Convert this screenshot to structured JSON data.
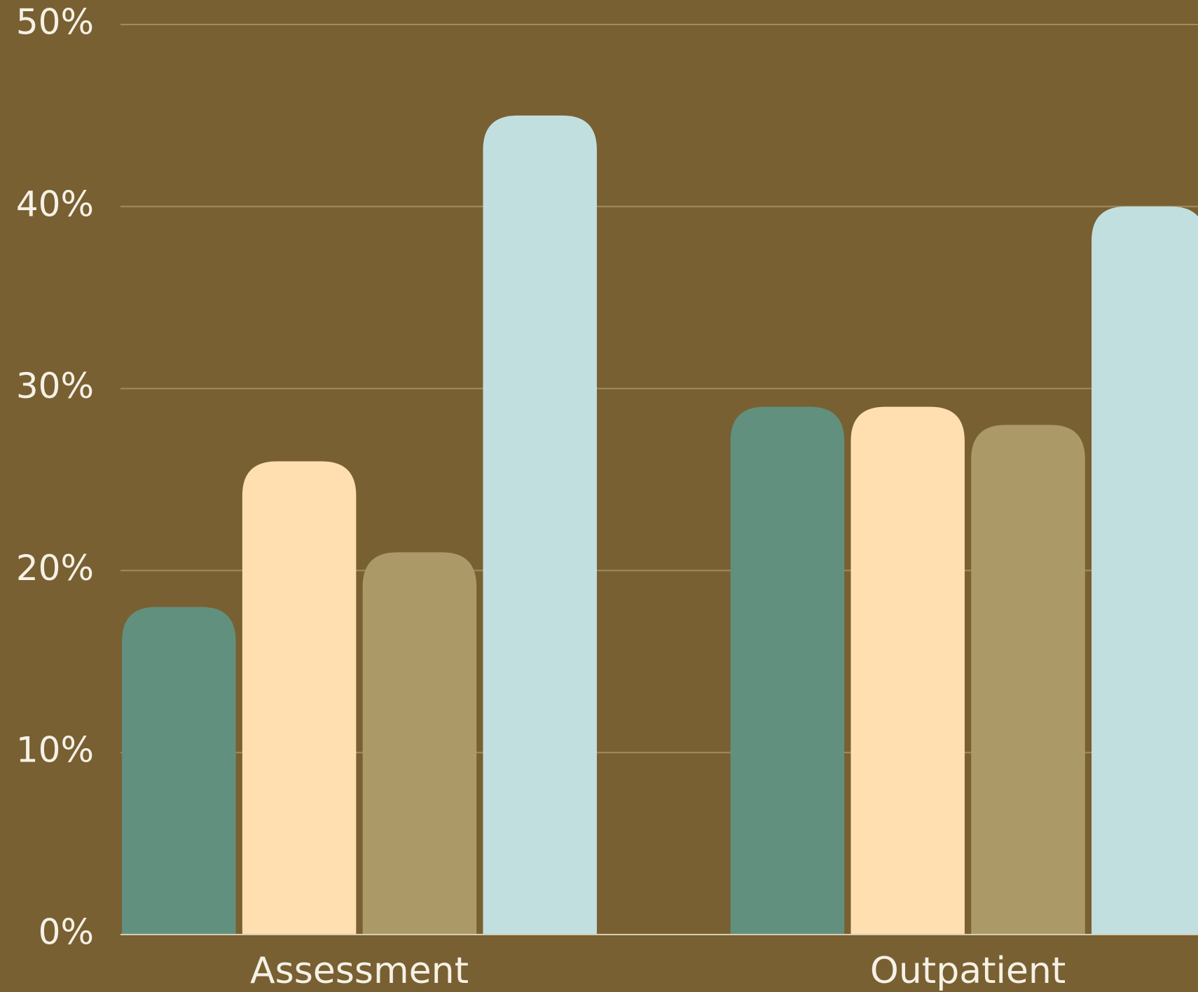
{
  "chart_data": {
    "type": "bar",
    "categories": [
      "Assessment",
      "Outpatient"
    ],
    "series": [
      {
        "color": "#62907f",
        "values": [
          18,
          29
        ]
      },
      {
        "color": "#ffdfb0",
        "values": [
          26,
          29
        ]
      },
      {
        "color": "#ab9a68",
        "values": [
          21,
          28
        ]
      },
      {
        "color": "#c2dfe0",
        "values": [
          45,
          40
        ]
      }
    ],
    "ylim": [
      0,
      50
    ],
    "yticks": [
      {
        "value": 0,
        "label": "0%"
      },
      {
        "value": 10,
        "label": "10%"
      },
      {
        "value": 20,
        "label": "20%"
      },
      {
        "value": 30,
        "label": "30%"
      },
      {
        "value": 40,
        "label": "40%"
      },
      {
        "value": 50,
        "label": "50%"
      }
    ],
    "grid": true
  }
}
